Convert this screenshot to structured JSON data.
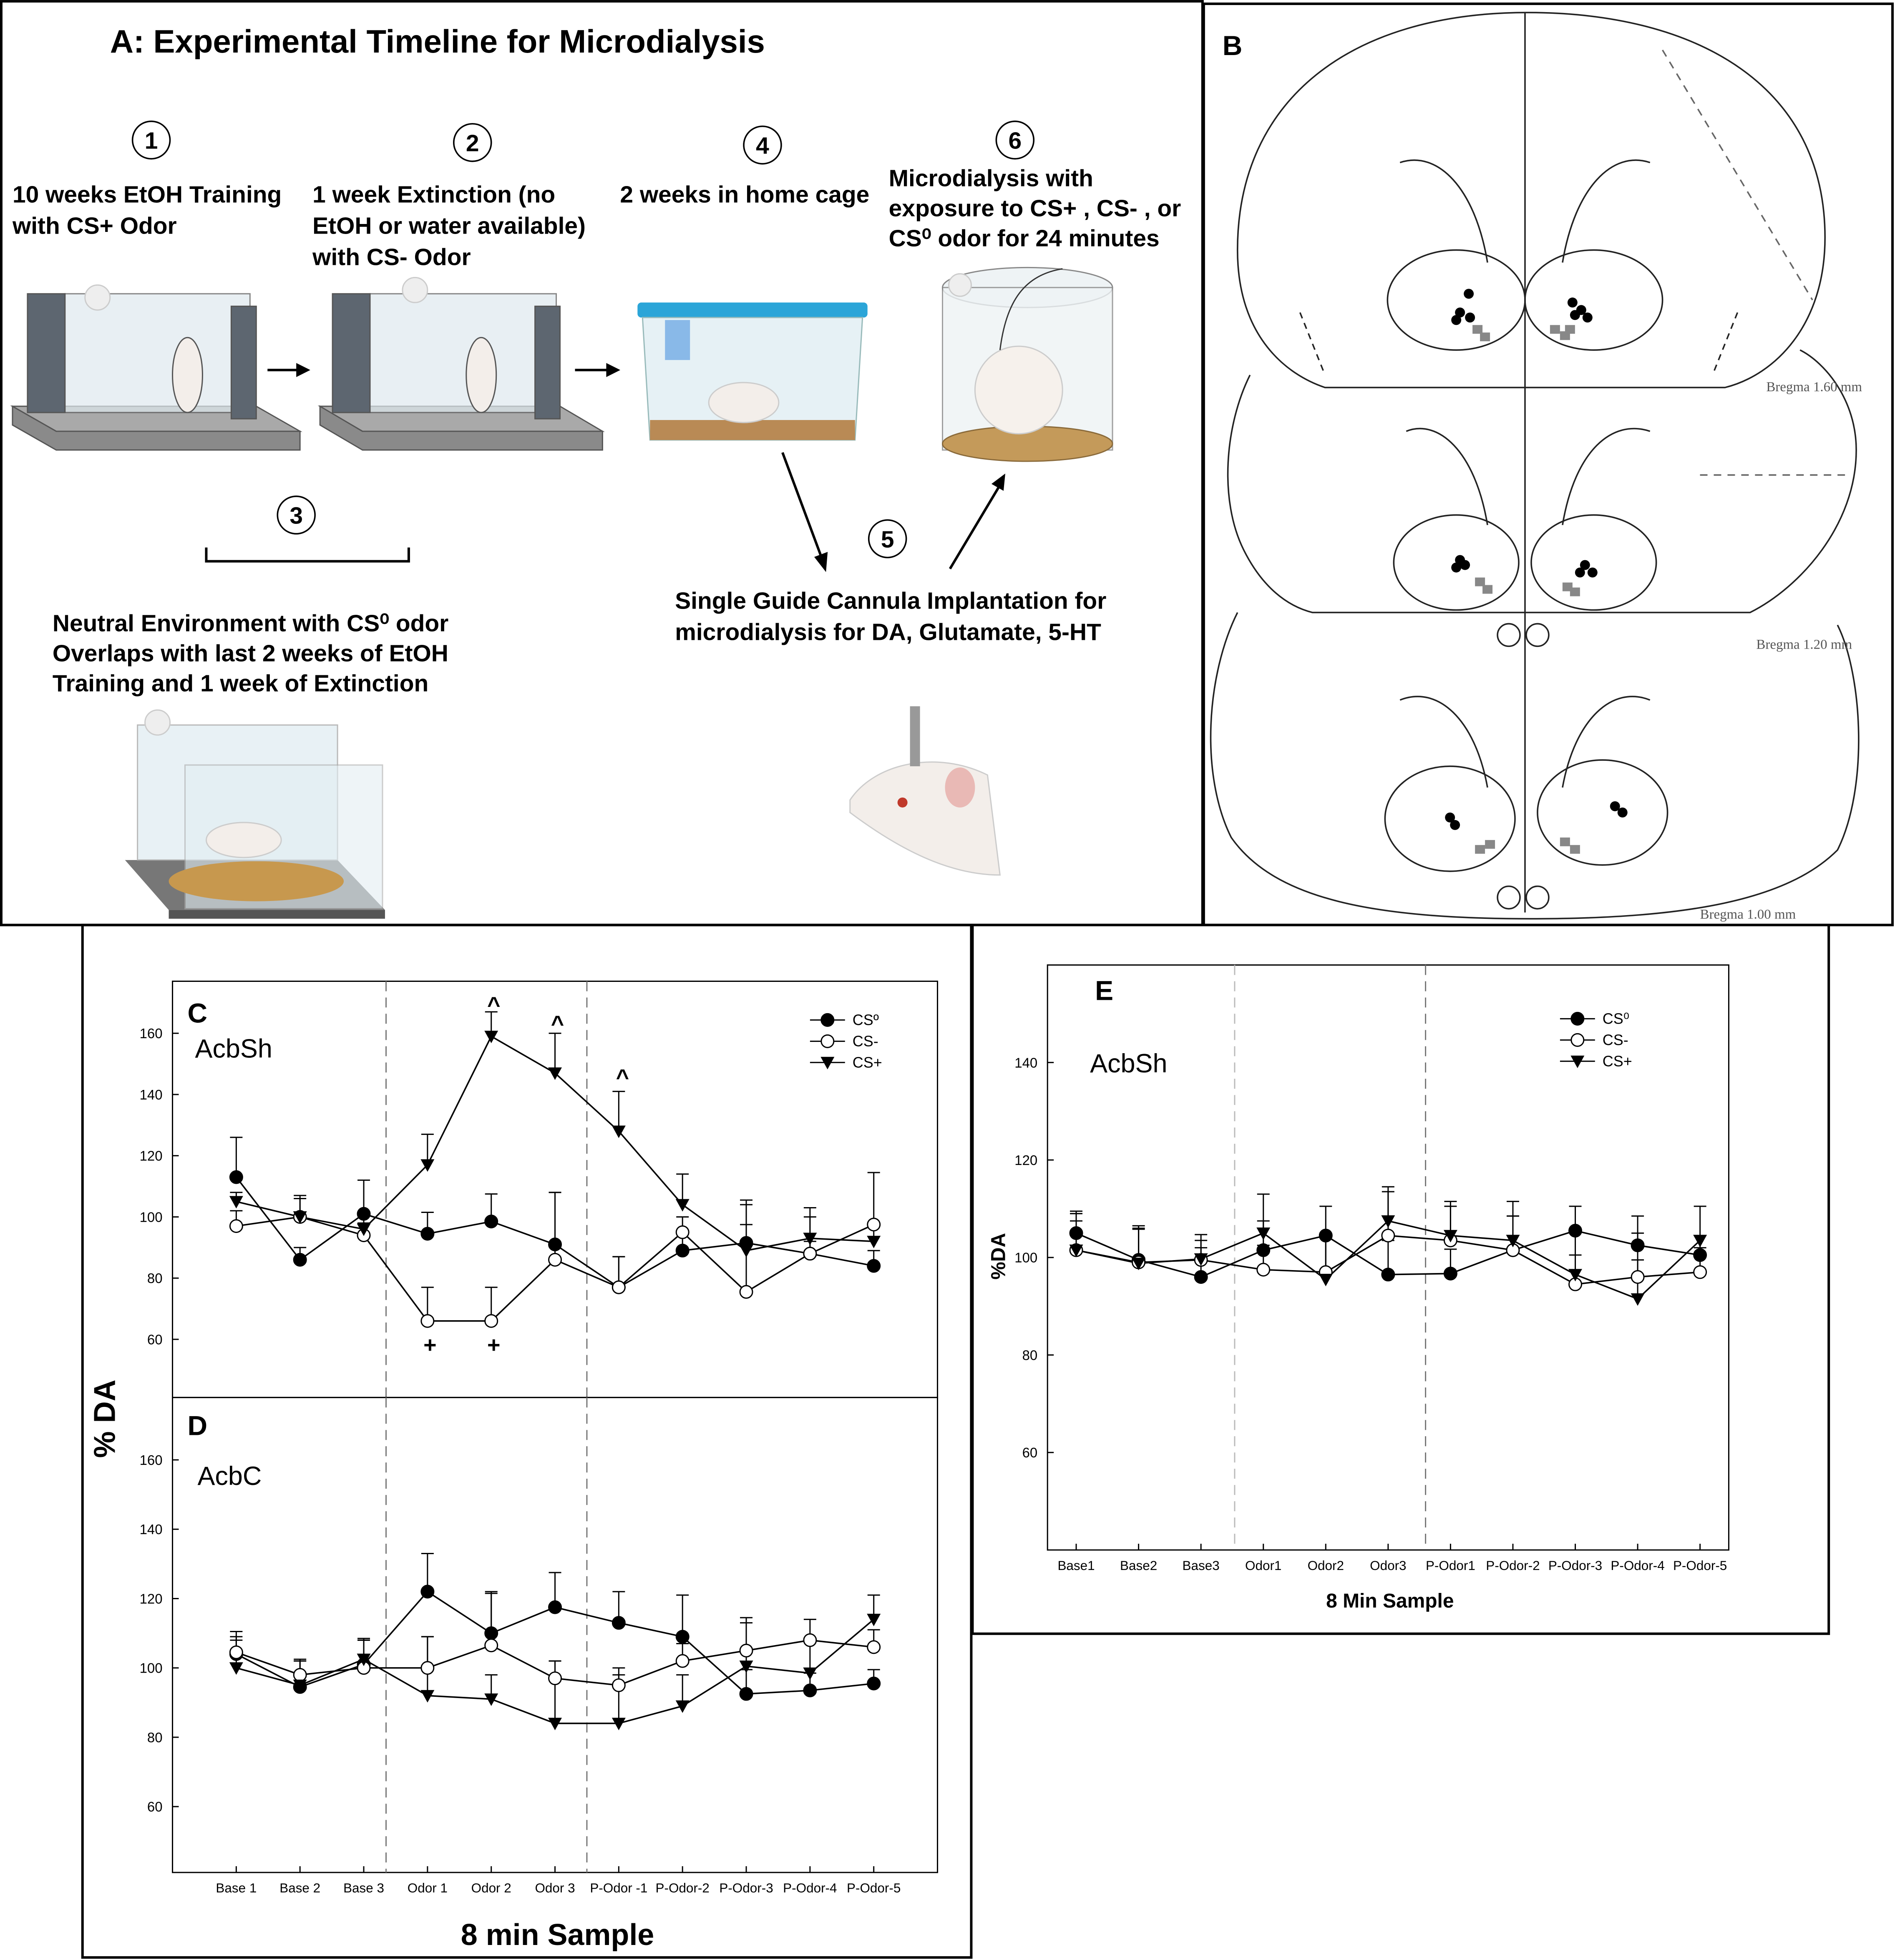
{
  "panel_a": {
    "title": "A: Experimental Timeline for Microdialysis",
    "steps": [
      {
        "number": 1,
        "lines": [
          "10 weeks EtOH Training",
          "with CS+ Odor"
        ]
      },
      {
        "number": 2,
        "lines": [
          " 1 week Extinction (no",
          "EtOH or water available)",
          "with CS- Odor"
        ]
      },
      {
        "number": 3,
        "lines": [
          "Neutral Environment  with CS⁰ odor",
          "Overlaps with last 2 weeks of EtOH",
          "Training and 1 week of Extinction"
        ]
      },
      {
        "number": 4,
        "lines": [
          "2 weeks in home cage"
        ]
      },
      {
        "number": 5,
        "lines": [
          "Single Guide Cannula Implantation for",
          "microdialysis for DA, Glutamate, 5-HT"
        ]
      },
      {
        "number": 6,
        "lines": [
          "Microdialysis with",
          "exposure to CS+ , CS- , or",
          "CS⁰ odor for 24 minutes"
        ]
      }
    ]
  },
  "panel_b": {
    "label": "B",
    "sections": [
      "Bregma 1.60 mm",
      "Bregma 1.20 mm",
      "Bregma 1.00 mm"
    ]
  },
  "chart_data": [
    {
      "type": "line",
      "panel": "C",
      "title": "AcbSh",
      "ylim": [
        41,
        177
      ],
      "yticks": [
        60,
        80,
        100,
        120,
        140,
        160
      ],
      "legend": "upper right",
      "annotations": [
        "^",
        "^",
        "^",
        "+",
        "+"
      ],
      "series": [
        {
          "name": "CSº",
          "marker": "filled-circle",
          "color": "#000000",
          "values": [
            113,
            86,
            101,
            94.5,
            98.5,
            91,
            77,
            89,
            91.5,
            88,
            84
          ],
          "errors": [
            13,
            4,
            11,
            7,
            9,
            17,
            10,
            6,
            6,
            4,
            5
          ]
        },
        {
          "name": "CS-",
          "marker": "open-circle",
          "color": "#000000",
          "values": [
            97,
            100,
            94,
            66,
            66,
            86,
            77,
            95,
            75.5,
            88,
            97.5
          ],
          "errors": [
            5,
            6,
            4,
            11,
            11,
            22,
            10,
            5,
            30,
            12,
            17
          ]
        },
        {
          "name": "CS+",
          "marker": "triangle-down",
          "color": "#000000",
          "values": [
            105,
            100,
            96,
            117,
            159,
            147,
            128,
            104,
            89,
            93,
            92
          ],
          "errors": [
            3,
            7,
            5,
            10,
            8,
            13,
            13,
            10,
            15,
            10,
            5
          ]
        }
      ]
    },
    {
      "type": "line",
      "panel": "D",
      "title": "AcbC",
      "ylabel": "% DA",
      "xlabel": "8 min Sample",
      "categories": [
        "Base 1",
        "Base 2",
        "Base 3",
        "Odor 1",
        "Odor 2",
        "Odor 3",
        "P-Odor -1",
        "P-Odor-2",
        "P-Odor-3",
        "P-Odor-4",
        "P-Odor-5"
      ],
      "ylim": [
        41,
        178
      ],
      "yticks": [
        60,
        80,
        100,
        120,
        140,
        160
      ],
      "series": [
        {
          "marker": "filled-circle",
          "color": "#000000",
          "values": [
            104,
            94.5,
            101,
            122,
            110,
            117.5,
            113,
            109,
            92.5,
            93.5,
            95.5
          ],
          "errors": [
            5,
            8,
            7,
            11,
            12,
            10,
            9,
            12,
            7,
            5,
            4
          ]
        },
        {
          "marker": "open-circle",
          "color": "#000000",
          "values": [
            104.5,
            98,
            100,
            100,
            106.5,
            97,
            95,
            102,
            105,
            108,
            106
          ],
          "errors": [
            6,
            4,
            8,
            9,
            15,
            5,
            3,
            5,
            8,
            6,
            5
          ]
        },
        {
          "marker": "triangle-down",
          "color": "#000000",
          "values": [
            100,
            95,
            102.5,
            92,
            91,
            84,
            84,
            89,
            100.5,
            98.5,
            114
          ],
          "errors": [
            8,
            7,
            6,
            17,
            7,
            18,
            16,
            9,
            14,
            10,
            7
          ]
        }
      ]
    },
    {
      "type": "line",
      "panel": "E",
      "title": "AcbSh",
      "ylabel": "%DA",
      "xlabel": "8 Min Sample",
      "categories": [
        "Base1",
        "Base2",
        "Base3",
        "Odor1",
        "Odor2",
        "Odor3",
        "P-Odor1",
        "P-Odor-2",
        "P-Odor-3",
        "P-Odor-4",
        "P-Odor-5"
      ],
      "ylim": [
        40,
        160
      ],
      "yticks": [
        60,
        80,
        100,
        120,
        140
      ],
      "legend": "upper right",
      "series": [
        {
          "name": "CS⁰",
          "marker": "filled-circle",
          "color": "#000000",
          "values": [
            105,
            99.5,
            96,
            101.5,
            104.5,
            96.5,
            96.7,
            101.5,
            105.5,
            102.5,
            100.5
          ],
          "errors": [
            4,
            7,
            6,
            6,
            6,
            7,
            5,
            7,
            5,
            6,
            4
          ]
        },
        {
          "name": "CS-",
          "marker": "open-circle",
          "color": "#000000",
          "values": [
            101.5,
            99,
            99.5,
            97.5,
            97,
            104.5,
            103.5,
            101.5,
            94.5,
            96,
            97
          ],
          "errors": [
            6,
            7,
            4,
            5,
            8,
            9,
            8,
            7,
            6,
            9,
            5
          ]
        },
        {
          "name": "CS+",
          "marker": "triangle-down",
          "color": "#000000",
          "values": [
            101.5,
            98.8,
            99.7,
            105,
            95.5,
            107.5,
            104.5,
            103.5,
            96.5,
            91.5,
            103.5
          ],
          "errors": [
            8,
            7,
            5,
            8,
            9,
            7,
            6,
            8,
            9,
            8,
            7
          ]
        }
      ]
    }
  ]
}
